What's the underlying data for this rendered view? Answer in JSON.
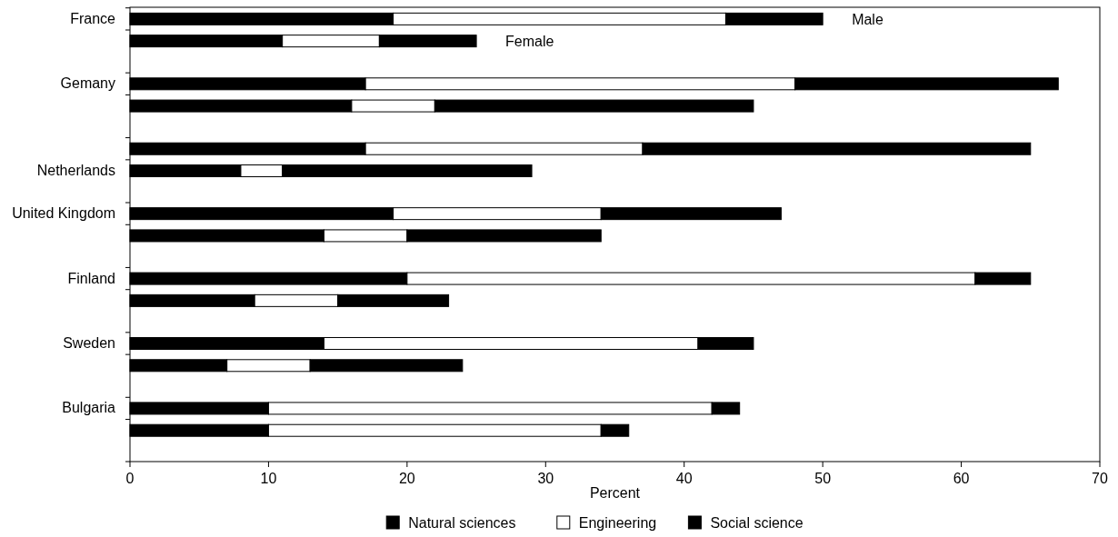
{
  "chart_data": {
    "type": "bar",
    "orientation": "horizontal",
    "stacked": true,
    "categories": [
      "France",
      null,
      "Gemany",
      null,
      null,
      "Netherlands",
      "United Kingdom",
      null,
      "Finland",
      null,
      "Sweden",
      null,
      "Bulgaria",
      null
    ],
    "series": [
      {
        "name": "Natural sciences",
        "color": "#000000",
        "values": [
          19,
          11,
          17,
          16,
          17,
          8,
          19,
          14,
          20,
          9,
          14,
          7,
          10,
          10
        ]
      },
      {
        "name": "Engineering",
        "color": "#ffffff",
        "values": [
          24,
          7,
          31,
          6,
          20,
          3,
          15,
          6,
          41,
          6,
          27,
          6,
          32,
          24
        ]
      },
      {
        "name": "Social science",
        "color": "#000000",
        "values": [
          7,
          7,
          19,
          23,
          28,
          18,
          13,
          14,
          4,
          8,
          4,
          11,
          2,
          2
        ]
      }
    ],
    "xlim": [
      0,
      70
    ],
    "xticks": [
      0,
      10,
      20,
      30,
      40,
      50,
      60,
      70
    ],
    "xlabel": "Percent",
    "annotations": [
      "Male",
      "Female"
    ],
    "legend": "bottom",
    "grid": false
  }
}
